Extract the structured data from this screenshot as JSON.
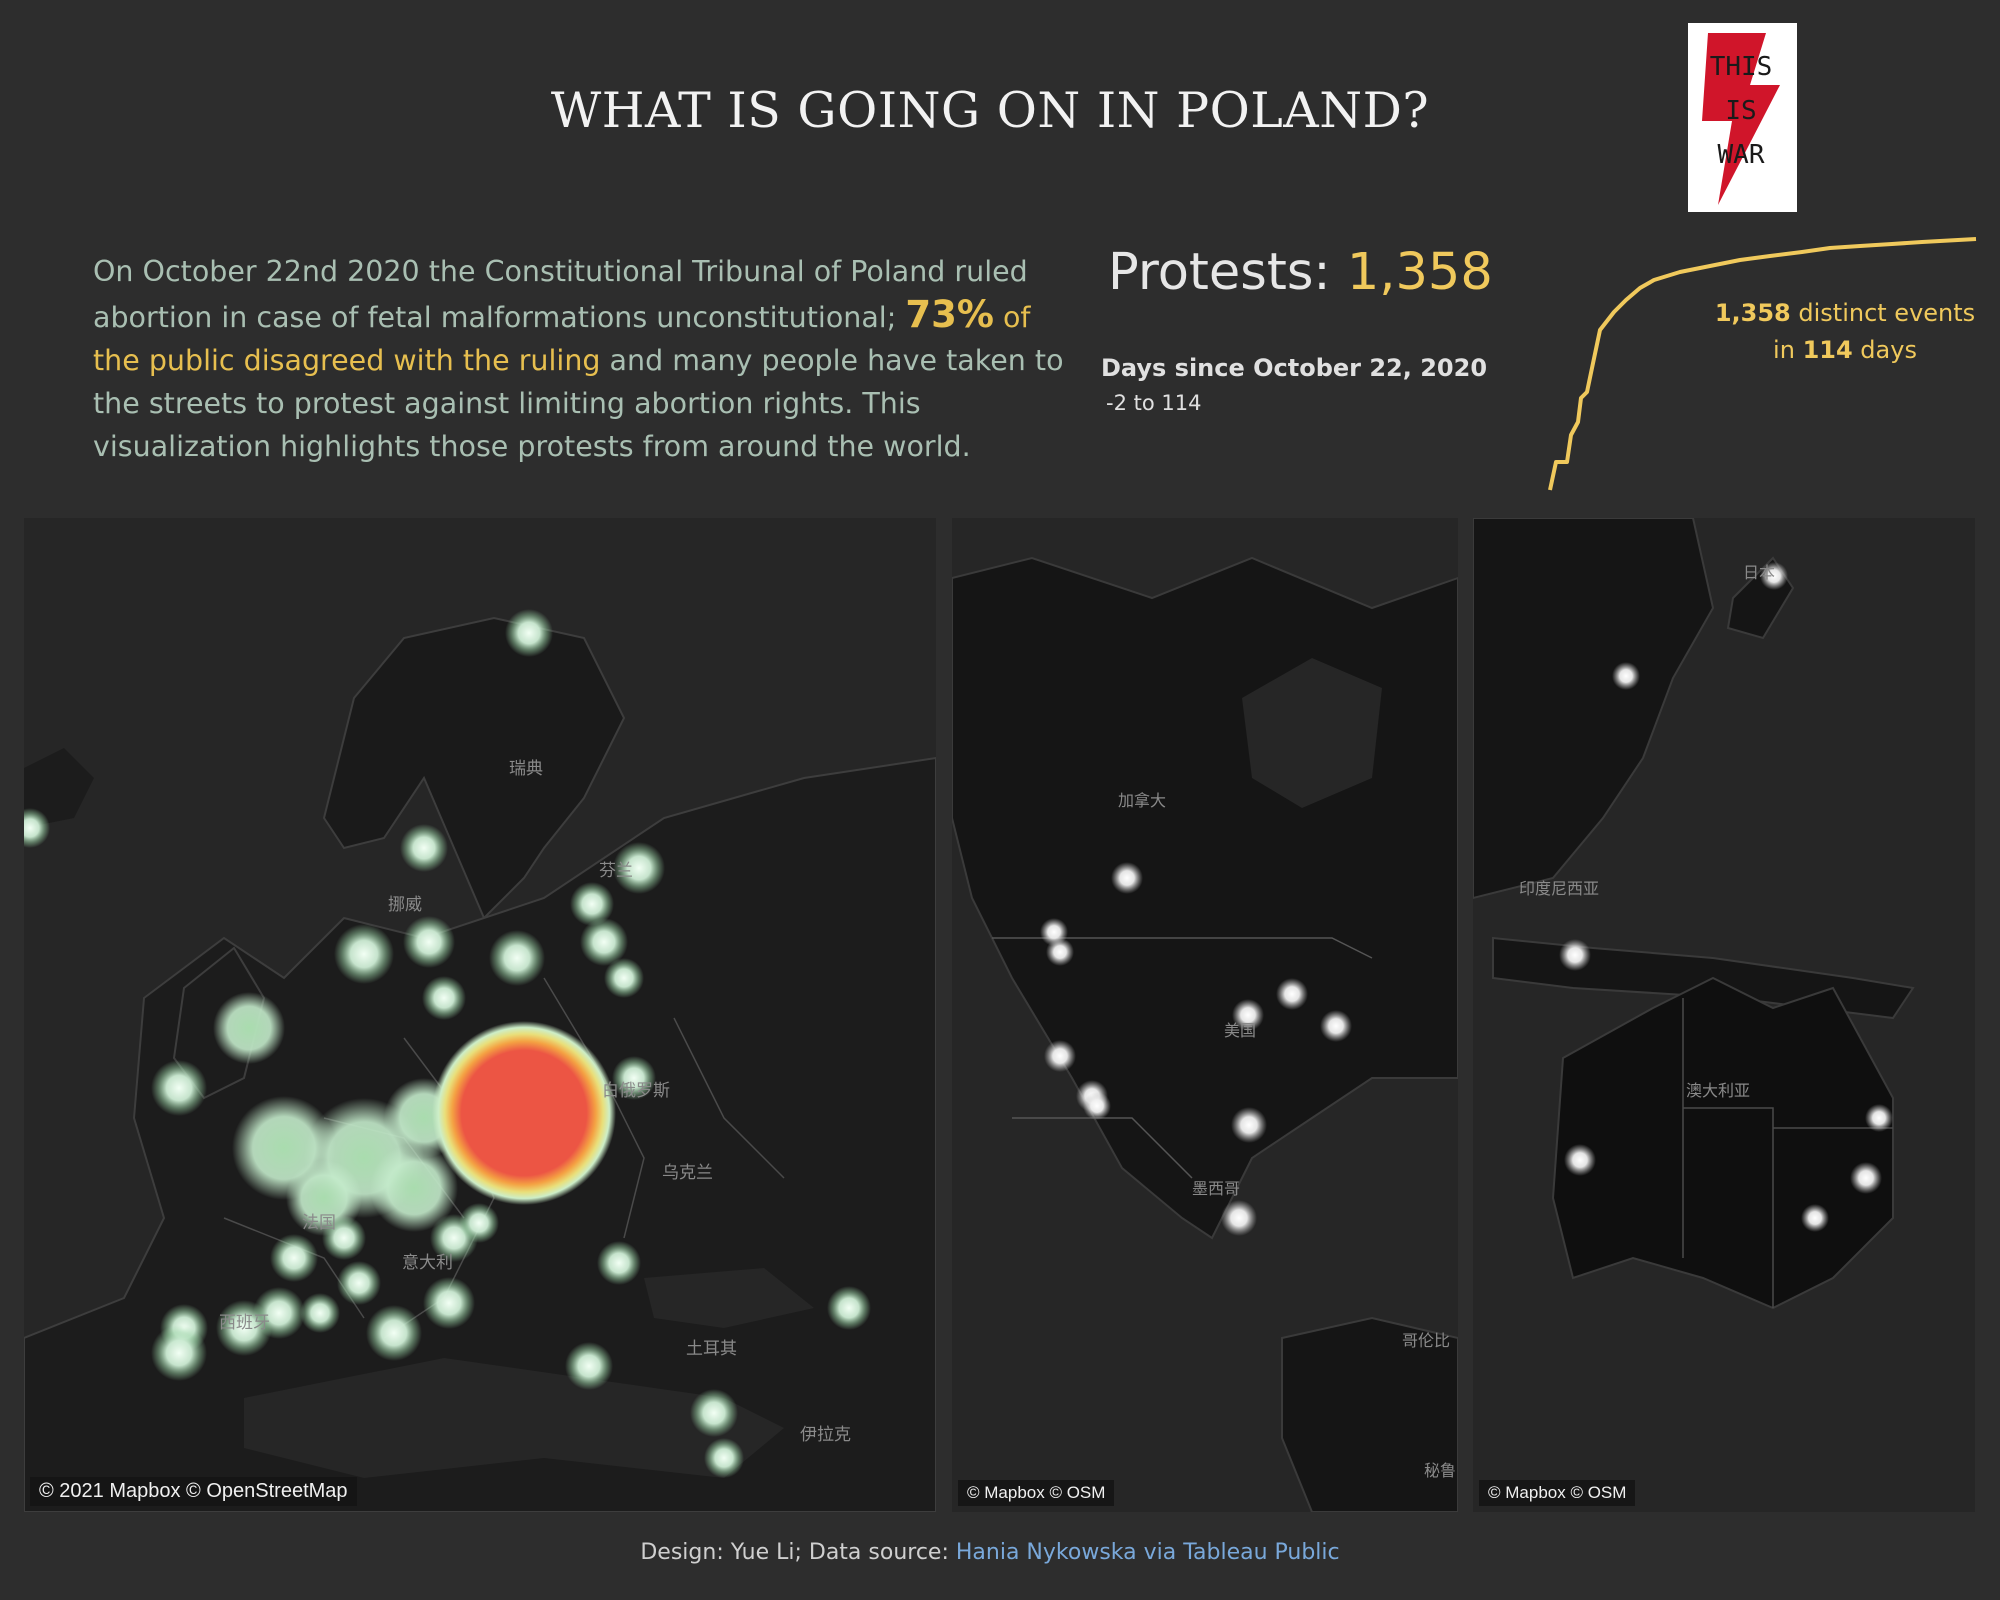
{
  "title": "WHAT IS GOING ON IN POLAND?",
  "logo": {
    "lines": [
      "THIS",
      "IS",
      "WAR"
    ],
    "icon": "lightning-bolt-icon",
    "color": "#d0152a"
  },
  "intro": {
    "part1": "On October 22nd 2020 the Constitutional Tribunal of Poland ruled abortion in case of fetal malformations unconstitutional; ",
    "pct": "73%",
    "part2": " of the public disagreed with the ruling",
    "part3": " and many people have taken to the streets to protest against limiting abortion rights. This visualization highlights those protests from around the world."
  },
  "kpi": {
    "label": "Protests: ",
    "value": "1,358"
  },
  "filter": {
    "label": "Days since October 22, 2020",
    "range": "-2 to 114"
  },
  "sparkline": {
    "events": "1,358",
    "events_text": " distinct events",
    "in_text": "in ",
    "days": "114",
    "days_text": " days",
    "color": "#f0c95c"
  },
  "maps": {
    "europe": {
      "attribution": "© 2021 Mapbox © OpenStreetMap",
      "labels": [
        {
          "text": "瑞典"
        },
        {
          "text": "挪威"
        },
        {
          "text": "芬兰"
        },
        {
          "text": "白俄罗斯"
        },
        {
          "text": "乌克兰"
        },
        {
          "text": "法国"
        },
        {
          "text": "意大利"
        },
        {
          "text": "西班牙"
        },
        {
          "text": "土耳其"
        },
        {
          "text": "伊拉克"
        }
      ]
    },
    "america": {
      "attribution": "© Mapbox © OSM",
      "labels": [
        {
          "text": "加拿大"
        },
        {
          "text": "美国"
        },
        {
          "text": "墨西哥"
        },
        {
          "text": "哥伦比"
        },
        {
          "text": "秘鲁"
        }
      ]
    },
    "oceania": {
      "attribution": "© Mapbox © OSM",
      "labels": [
        {
          "text": "日本"
        },
        {
          "text": "印度尼西亚"
        },
        {
          "text": "澳大利亚"
        }
      ]
    }
  },
  "footer": {
    "prefix": "Design: Yue Li; Data source: ",
    "link": "Hania Nykowska via Tableau Public"
  }
}
